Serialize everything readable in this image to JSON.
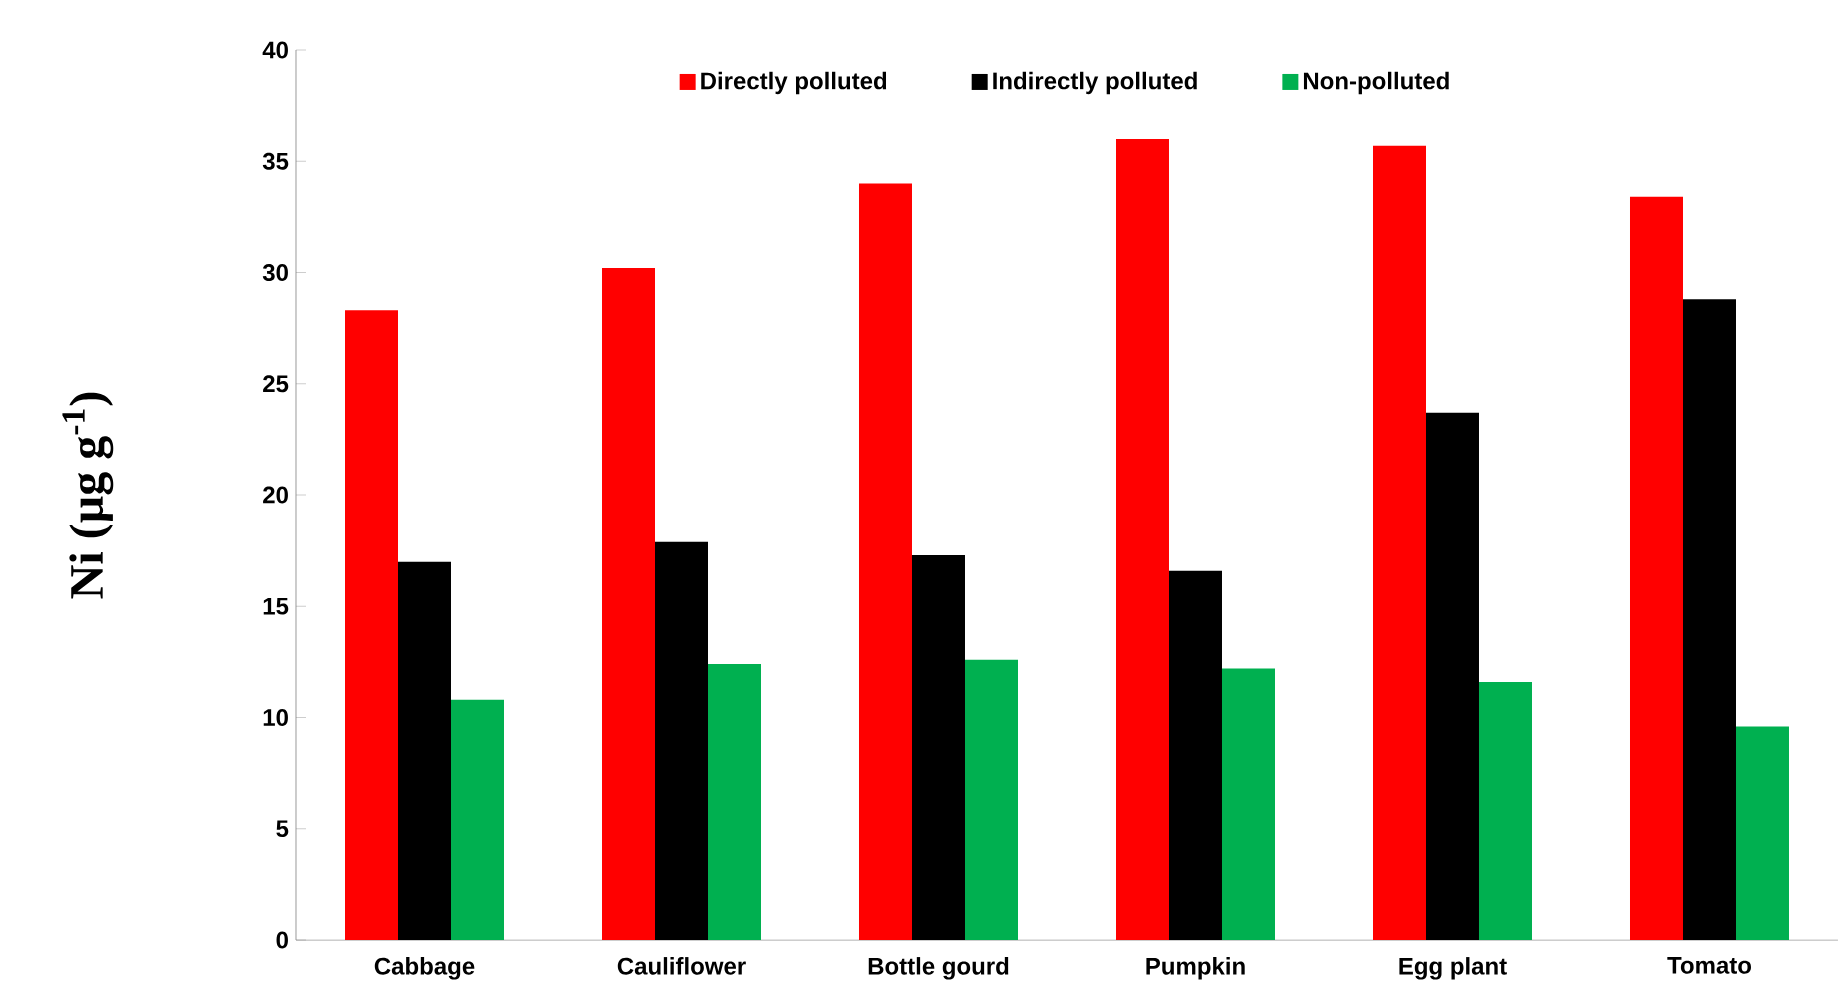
{
  "chart_data": {
    "type": "bar",
    "ylabel": "Ni (µg g$^{-1}$)",
    "categories": [
      "Cabbage",
      "Cauliflower",
      "Bottle gourd",
      "Pumpkin",
      "Egg plant",
      "Tomato"
    ],
    "series": [
      {
        "name": "Directly polluted",
        "color": "#ff0000",
        "values": [
          28.3,
          30.2,
          34.0,
          36.0,
          35.7,
          33.4
        ]
      },
      {
        "name": "Indirectly polluted",
        "color": "#000000",
        "values": [
          17.0,
          17.9,
          17.3,
          16.6,
          23.7,
          28.8
        ]
      },
      {
        "name": "Non-polluted",
        "color": "#00b050",
        "values": [
          10.8,
          12.4,
          12.6,
          12.2,
          11.6,
          9.6
        ]
      }
    ],
    "ylim": [
      0,
      40
    ],
    "yticks": [
      0,
      5,
      10,
      15,
      20,
      25,
      30,
      35,
      40
    ],
    "grid": false,
    "legend": "top"
  }
}
